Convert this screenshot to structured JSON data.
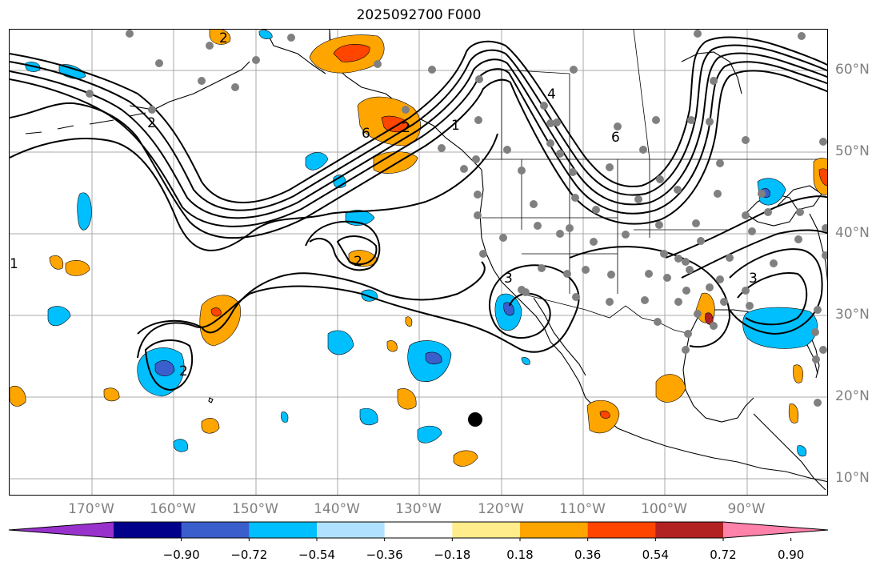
{
  "title": "2025092700 F000",
  "lon_labels": [
    "170°W",
    "160°W",
    "150°W",
    "140°W",
    "130°W",
    "120°W",
    "110°W",
    "100°W",
    "90°W"
  ],
  "lat_labels": [
    "60°N",
    "50°N",
    "40°N",
    "30°N",
    "20°N",
    "10°N"
  ],
  "colorbar": {
    "ticks": [
      "−0.90",
      "−0.72",
      "−0.54",
      "−0.36",
      "−0.18",
      "0.18",
      "0.36",
      "0.54",
      "0.72",
      "0.90"
    ],
    "colors": [
      "#9932cc",
      "#00008b",
      "#3a5fcd",
      "#00bfff",
      "#b0e2ff",
      "#ffffff",
      "#ffec8b",
      "#ffa500",
      "#ff4500",
      "#b22222",
      "#ff82ab"
    ]
  },
  "contour_labels": [
    "2",
    "2",
    "6",
    "2",
    "1",
    "4",
    "6",
    "2",
    "3",
    "3",
    "2",
    "1"
  ],
  "colors": {
    "grid": "#a9a9a9",
    "station": "#808080",
    "label": "#808080"
  }
}
